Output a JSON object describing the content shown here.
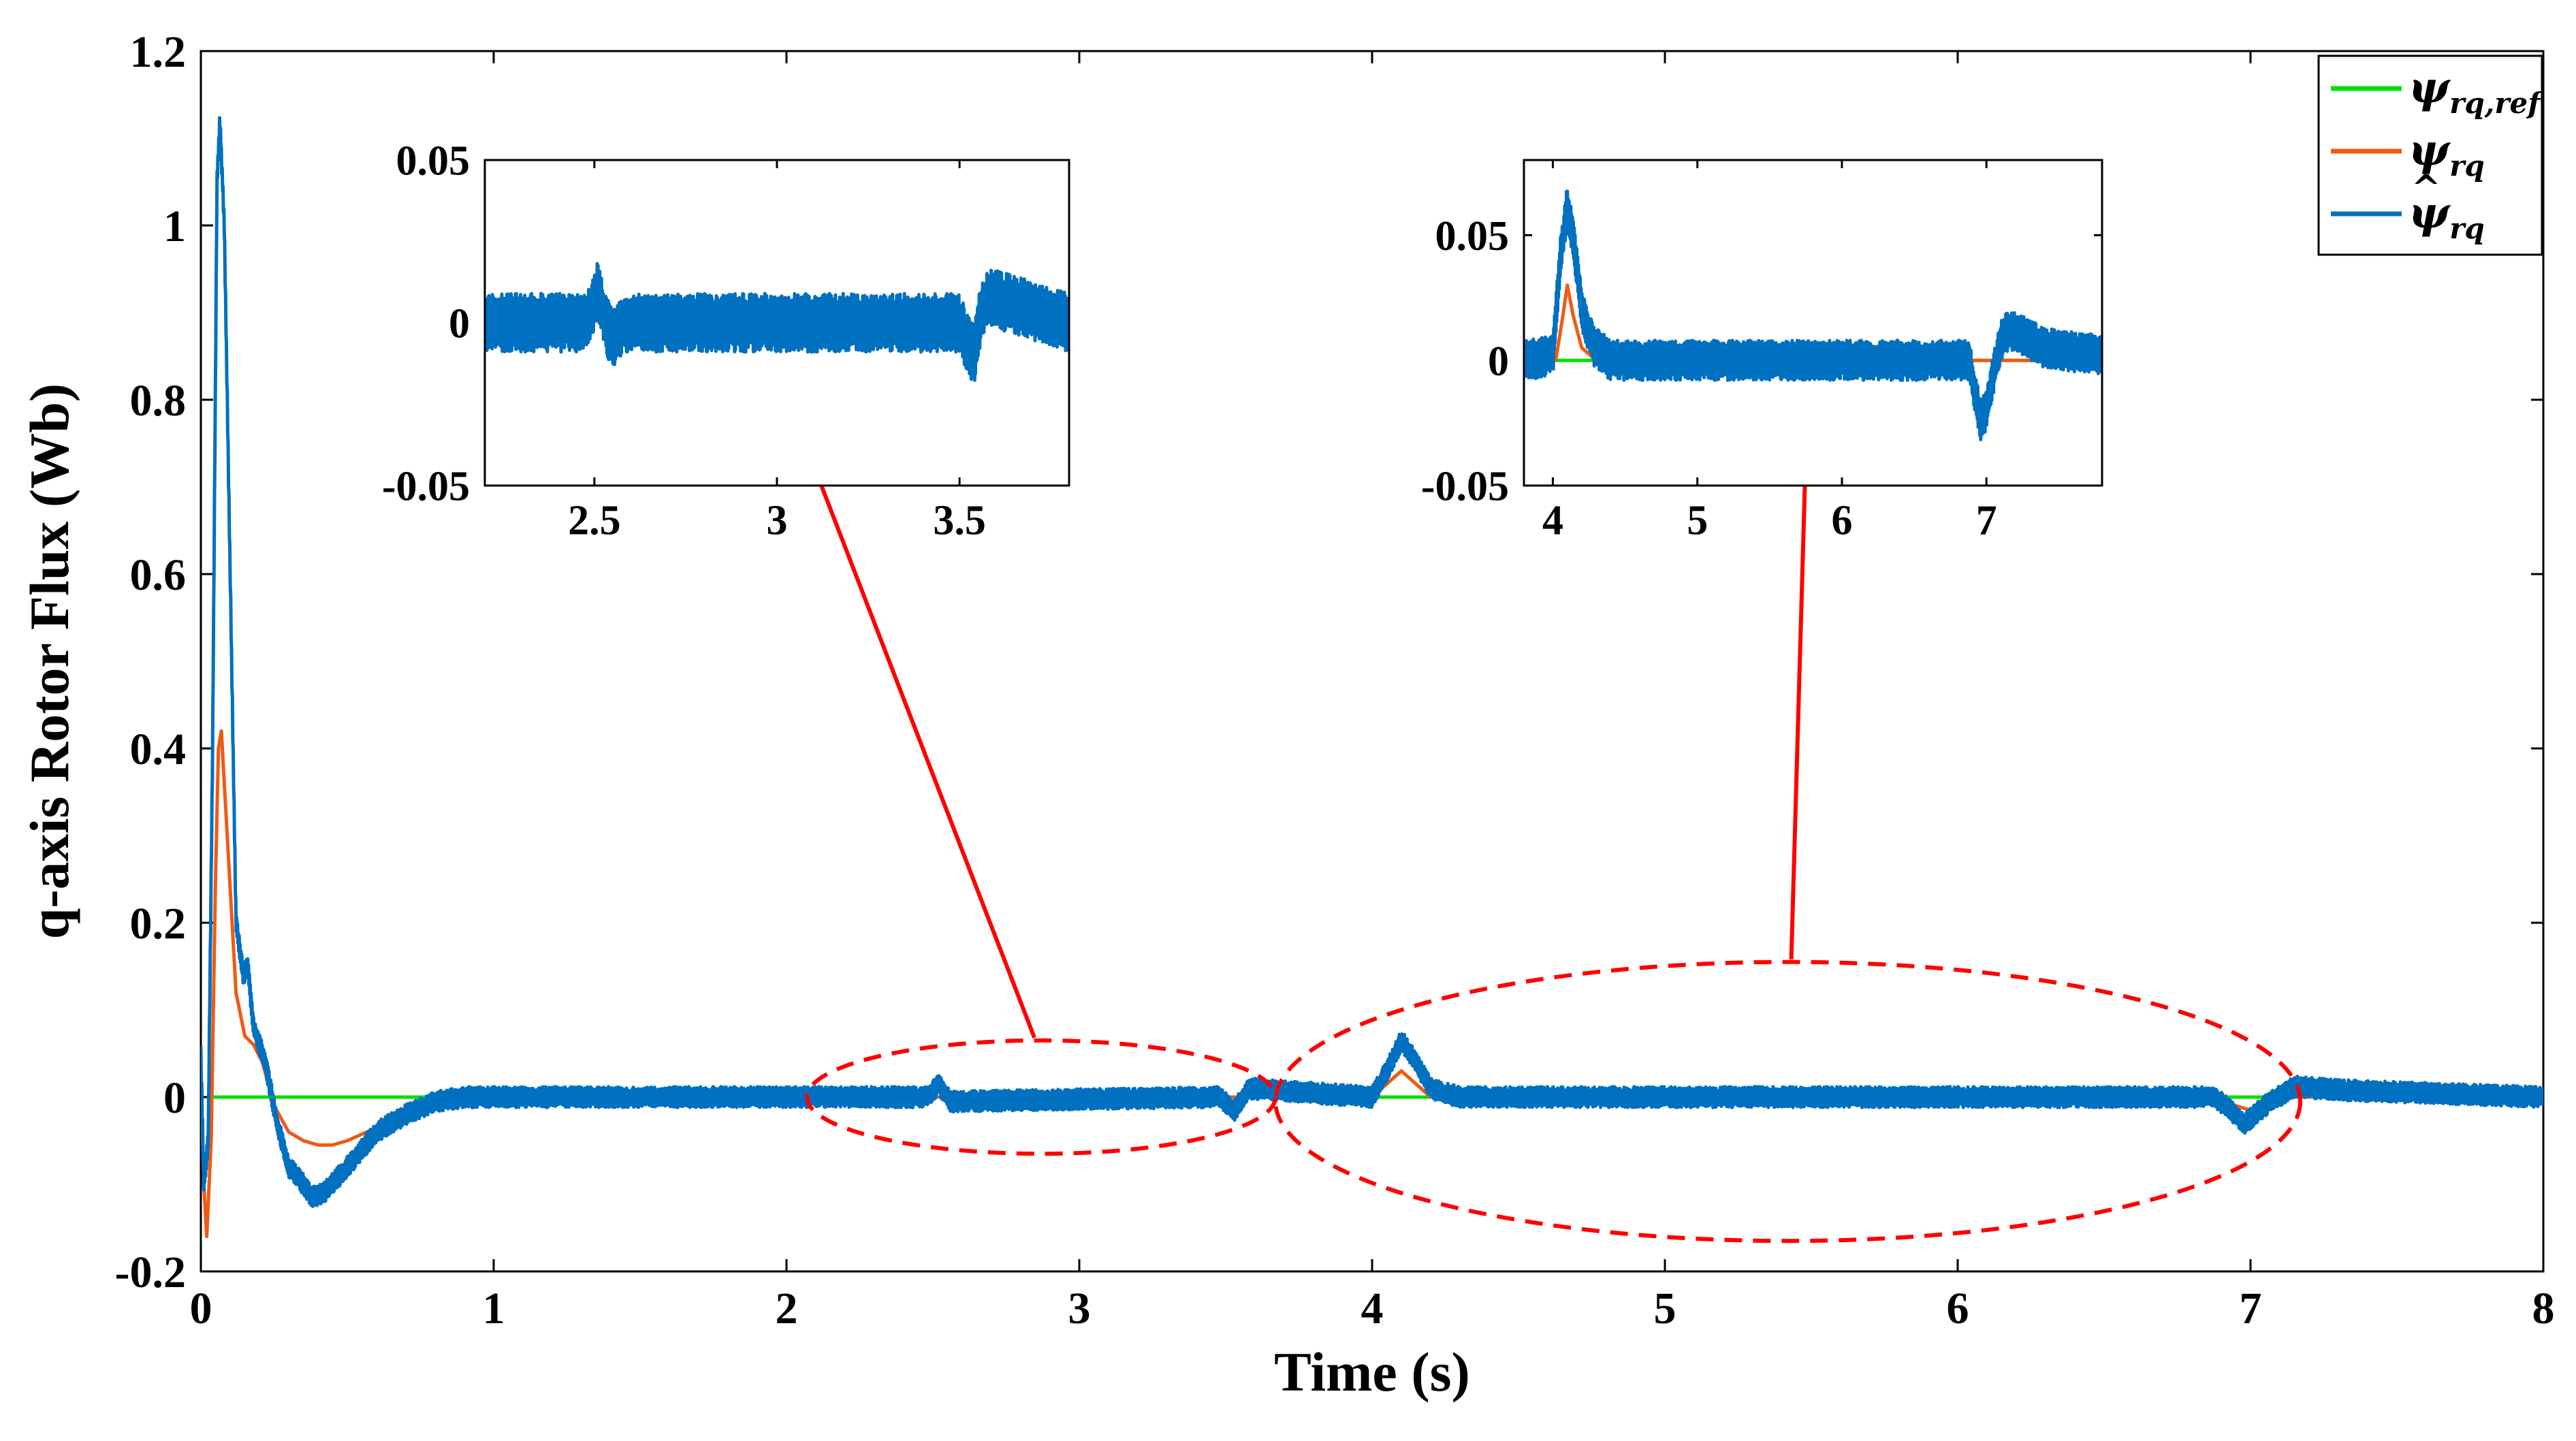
{
  "colors": {
    "reference": "#00e000",
    "actual": "#f05a14",
    "estimated": "#0070c0",
    "annotation": "#ff0000",
    "axes": "#000000",
    "background": "#ffffff"
  },
  "chart_data": [
    {
      "id": "main",
      "type": "line",
      "title": "",
      "xlabel": "Time (s)",
      "ylabel": "q-axis Rotor Flux (Wb)",
      "xlim": [
        0,
        8
      ],
      "ylim": [
        -0.2,
        1.2
      ],
      "xticks": [
        0,
        1,
        2,
        3,
        4,
        5,
        6,
        7,
        8
      ],
      "xtick_labels": [
        "0",
        "1",
        "2",
        "3",
        "4",
        "5",
        "6",
        "7",
        "8"
      ],
      "yticks": [
        -0.2,
        0,
        0.2,
        0.4,
        0.6,
        0.8,
        1.0,
        1.2
      ],
      "ytick_labels": [
        "-0.2",
        "0",
        "0.2",
        "0.4",
        "0.6",
        "0.8",
        "1",
        "1.2"
      ],
      "grid": false,
      "legend_position": "top-right",
      "series": [
        {
          "name": "ψ_rq,ref",
          "key": "reference",
          "x": [
            0.03,
            8.0
          ],
          "y": [
            0.0,
            0.0
          ]
        },
        {
          "name": "ψ_rq",
          "key": "actual",
          "x": [
            0,
            0.01,
            0.02,
            0.035,
            0.05,
            0.06,
            0.07,
            0.09,
            0.12,
            0.15,
            0.18,
            0.21,
            0.25,
            0.3,
            0.35,
            0.4,
            0.45,
            0.5,
            0.6,
            0.7,
            0.8,
            0.9,
            1.0,
            4.0,
            4.05,
            4.1,
            4.15,
            4.2,
            4.3,
            6.9,
            6.95,
            7.0,
            7.05,
            7.2,
            8.0
          ],
          "y": [
            0.03,
            -0.1,
            -0.16,
            -0.05,
            0.25,
            0.4,
            0.42,
            0.3,
            0.12,
            0.07,
            0.06,
            0.04,
            -0.01,
            -0.04,
            -0.05,
            -0.055,
            -0.055,
            -0.05,
            -0.035,
            -0.02,
            -0.005,
            0.0,
            0.0,
            0.0,
            0.015,
            0.03,
            0.015,
            0.0,
            0.0,
            0.0,
            -0.01,
            -0.015,
            0.0,
            0.0,
            0.0
          ]
        },
        {
          "name": "ψ̂_rq",
          "key": "estimated",
          "noise_amplitude": 0.012,
          "x": [
            0,
            0.01,
            0.025,
            0.04,
            0.055,
            0.065,
            0.08,
            0.1,
            0.12,
            0.145,
            0.16,
            0.18,
            0.2,
            0.22,
            0.26,
            0.3,
            0.35,
            0.38,
            0.42,
            0.5,
            0.6,
            0.7,
            0.8,
            0.9,
            1.0,
            2.48,
            2.52,
            2.56,
            3.48,
            3.53,
            3.58,
            4.0,
            4.05,
            4.1,
            4.15,
            4.2,
            4.3,
            6.88,
            6.93,
            6.98,
            7.05,
            7.15,
            7.3,
            8.0
          ],
          "y": [
            0.05,
            -0.1,
            -0.05,
            0.4,
            1.05,
            1.12,
            1.0,
            0.6,
            0.2,
            0.14,
            0.15,
            0.08,
            0.06,
            0.04,
            -0.03,
            -0.08,
            -0.1,
            -0.115,
            -0.11,
            -0.08,
            -0.04,
            -0.02,
            -0.005,
            0.0,
            0.0,
            0.0,
            0.015,
            -0.005,
            0.0,
            -0.015,
            0.01,
            0.0,
            0.03,
            0.065,
            0.04,
            0.01,
            0.0,
            0.0,
            -0.015,
            -0.03,
            -0.01,
            0.012,
            0.008,
            0.0
          ]
        }
      ],
      "legend": [
        {
          "label": "ψ",
          "subscript": "rq,ref",
          "key": "reference",
          "hat": false
        },
        {
          "label": "ψ",
          "subscript": "rq",
          "key": "actual",
          "hat": false
        },
        {
          "label": "ψ",
          "subscript": "rq",
          "key": "estimated",
          "hat": true
        }
      ],
      "annotations": [
        {
          "type": "dashed-ellipse",
          "x_range": [
            2.07,
            3.67
          ],
          "y_range": [
            -0.065,
            0.065
          ],
          "zoom_inset": "inset_1"
        },
        {
          "type": "dashed-ellipse",
          "x_range": [
            3.67,
            7.17
          ],
          "y_range": [
            -0.165,
            0.155
          ],
          "zoom_inset": "inset_2"
        }
      ]
    },
    {
      "id": "inset_1",
      "type": "line",
      "title": "",
      "xlabel": "",
      "ylabel": "",
      "xlim": [
        2.2,
        3.8
      ],
      "ylim": [
        -0.05,
        0.05
      ],
      "xticks": [
        2.5,
        3,
        3.5
      ],
      "xtick_labels": [
        "2.5",
        "3",
        "3.5"
      ],
      "yticks": [
        -0.05,
        0,
        0.05
      ],
      "ytick_labels": [
        "-0.05",
        "0",
        "0.05"
      ],
      "grid": false,
      "series": [
        {
          "name": "ψ̂_rq",
          "key": "estimated",
          "noise_amplitude": 0.009,
          "x": [
            2.2,
            2.48,
            2.51,
            2.53,
            2.55,
            2.58,
            3.5,
            3.52,
            3.54,
            3.56,
            3.58,
            3.8
          ],
          "y": [
            0.0,
            0.0,
            0.01,
            0.0,
            -0.005,
            0.0,
            0.0,
            -0.006,
            -0.01,
            0.004,
            0.008,
            0.0
          ]
        }
      ]
    },
    {
      "id": "inset_2",
      "type": "line",
      "title": "",
      "xlabel": "",
      "ylabel": "",
      "xlim": [
        3.8,
        7.8
      ],
      "ylim": [
        -0.05,
        0.08
      ],
      "xticks": [
        4,
        5,
        6,
        7
      ],
      "xtick_labels": [
        "4",
        "5",
        "6",
        "7"
      ],
      "yticks": [
        -0.05,
        0,
        0.05
      ],
      "ytick_labels": [
        "-0.05",
        "0",
        "0.05"
      ],
      "grid": false,
      "series": [
        {
          "name": "ψ_rq,ref",
          "key": "reference",
          "x": [
            3.8,
            7.8
          ],
          "y": [
            0.0,
            0.0
          ]
        },
        {
          "name": "ψ_rq",
          "key": "actual",
          "x": [
            3.8,
            4.02,
            4.07,
            4.1,
            4.14,
            4.2,
            4.3,
            7.8
          ],
          "y": [
            0.0,
            0.0,
            0.018,
            0.03,
            0.018,
            0.005,
            0.0,
            0.0
          ]
        },
        {
          "name": "ψ̂_rq",
          "key": "estimated",
          "noise_amplitude": 0.008,
          "x": [
            3.8,
            4.0,
            4.05,
            4.1,
            4.15,
            4.2,
            4.28,
            4.4,
            6.88,
            6.92,
            6.96,
            7.0,
            7.05,
            7.1,
            7.15,
            7.25,
            7.4,
            7.8
          ],
          "y": [
            0.0,
            0.002,
            0.04,
            0.062,
            0.045,
            0.02,
            0.006,
            0.0,
            0.0,
            -0.012,
            -0.024,
            -0.02,
            -0.005,
            0.008,
            0.012,
            0.01,
            0.005,
            0.002
          ]
        }
      ]
    }
  ]
}
